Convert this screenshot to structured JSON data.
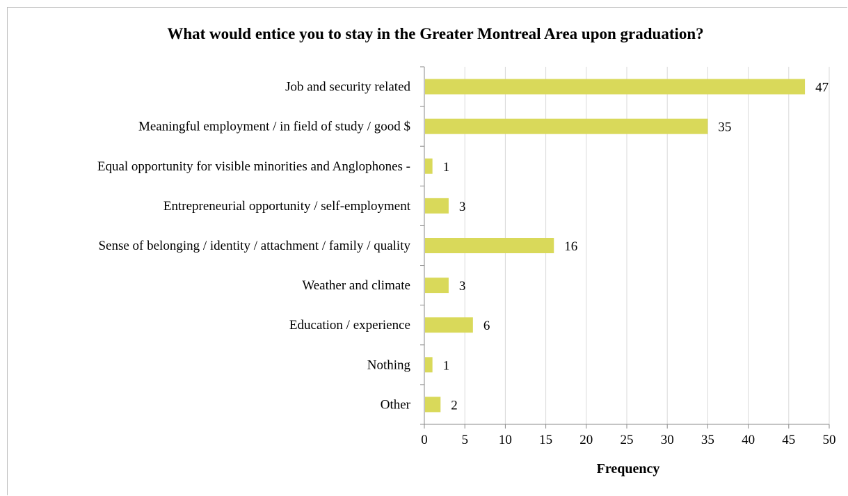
{
  "chart_data": {
    "type": "bar",
    "orientation": "horizontal",
    "title": "What would entice you to stay in the Greater Montreal Area upon graduation?",
    "xlabel": "Frequency",
    "ylabel": "",
    "categories": [
      "Job and security related",
      "Meaningful employment / in field of study / good $",
      "Equal opportunity for visible minorities and Anglophones -",
      "Entrepreneurial opportunity  / self-employment",
      "Sense of belonging / identity / attachment / family / quality",
      "Weather and climate",
      "Education / experience",
      "Nothing",
      "Other"
    ],
    "values": [
      47,
      35,
      1,
      3,
      16,
      3,
      6,
      1,
      2
    ],
    "xlim": [
      0,
      50
    ],
    "xticks": [
      0,
      5,
      10,
      15,
      20,
      25,
      30,
      35,
      40,
      45,
      50
    ],
    "grid": true,
    "data_labels": true,
    "bar_color": "#d9d95a",
    "grid_color": "#d9d9d9",
    "axis_color": "#888888"
  }
}
